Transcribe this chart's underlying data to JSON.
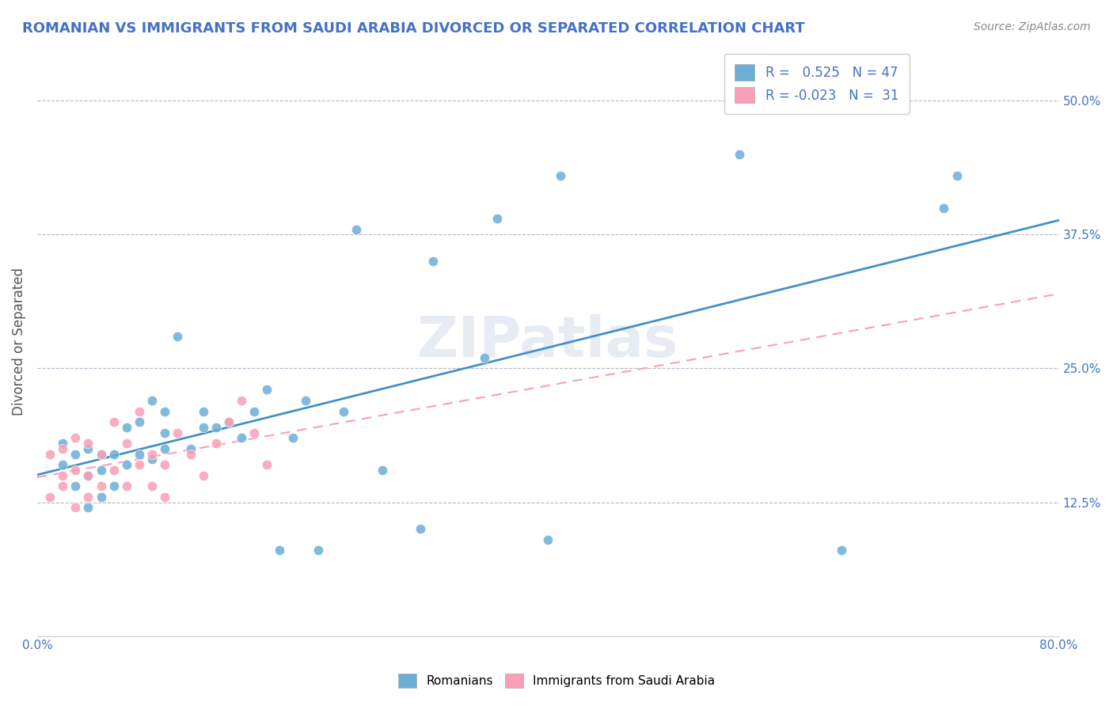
{
  "title": "ROMANIAN VS IMMIGRANTS FROM SAUDI ARABIA DIVORCED OR SEPARATED CORRELATION CHART",
  "source": "Source: ZipAtlas.com",
  "ylabel": "Divorced or Separated",
  "xlim": [
    0.0,
    0.8
  ],
  "ylim": [
    0.0,
    0.55
  ],
  "yticks_right": [
    0.125,
    0.25,
    0.375,
    0.5
  ],
  "ytick_labels_right": [
    "12.5%",
    "25.0%",
    "37.5%",
    "50.0%"
  ],
  "r1": 0.525,
  "n1": 47,
  "r2": -0.023,
  "n2": 31,
  "blue_color": "#6baed6",
  "pink_color": "#fa9fb5",
  "blue_line_color": "#4292c6",
  "pink_line_color": "#f768a1",
  "legend_label1": "Romanians",
  "legend_label2": "Immigrants from Saudi Arabia",
  "watermark": "ZIPatlas",
  "blue_scatter_x": [
    0.02,
    0.02,
    0.03,
    0.03,
    0.04,
    0.04,
    0.04,
    0.05,
    0.05,
    0.05,
    0.06,
    0.06,
    0.07,
    0.07,
    0.08,
    0.08,
    0.09,
    0.09,
    0.1,
    0.1,
    0.1,
    0.11,
    0.12,
    0.13,
    0.13,
    0.14,
    0.15,
    0.16,
    0.17,
    0.18,
    0.19,
    0.2,
    0.21,
    0.22,
    0.24,
    0.25,
    0.27,
    0.3,
    0.31,
    0.35,
    0.36,
    0.4,
    0.41,
    0.55,
    0.63,
    0.71,
    0.72
  ],
  "blue_scatter_y": [
    0.16,
    0.18,
    0.14,
    0.17,
    0.12,
    0.15,
    0.175,
    0.13,
    0.155,
    0.17,
    0.14,
    0.17,
    0.16,
    0.195,
    0.17,
    0.2,
    0.165,
    0.22,
    0.175,
    0.19,
    0.21,
    0.28,
    0.175,
    0.195,
    0.21,
    0.195,
    0.2,
    0.185,
    0.21,
    0.23,
    0.08,
    0.185,
    0.22,
    0.08,
    0.21,
    0.38,
    0.155,
    0.1,
    0.35,
    0.26,
    0.39,
    0.09,
    0.43,
    0.45,
    0.08,
    0.4,
    0.43
  ],
  "pink_scatter_x": [
    0.01,
    0.01,
    0.02,
    0.02,
    0.02,
    0.03,
    0.03,
    0.03,
    0.04,
    0.04,
    0.04,
    0.05,
    0.05,
    0.06,
    0.06,
    0.07,
    0.07,
    0.08,
    0.08,
    0.09,
    0.09,
    0.1,
    0.1,
    0.11,
    0.12,
    0.13,
    0.14,
    0.15,
    0.16,
    0.17,
    0.18
  ],
  "pink_scatter_y": [
    0.13,
    0.17,
    0.14,
    0.15,
    0.175,
    0.12,
    0.155,
    0.185,
    0.13,
    0.15,
    0.18,
    0.14,
    0.17,
    0.155,
    0.2,
    0.14,
    0.18,
    0.16,
    0.21,
    0.14,
    0.17,
    0.13,
    0.16,
    0.19,
    0.17,
    0.15,
    0.18,
    0.2,
    0.22,
    0.19,
    0.16
  ]
}
